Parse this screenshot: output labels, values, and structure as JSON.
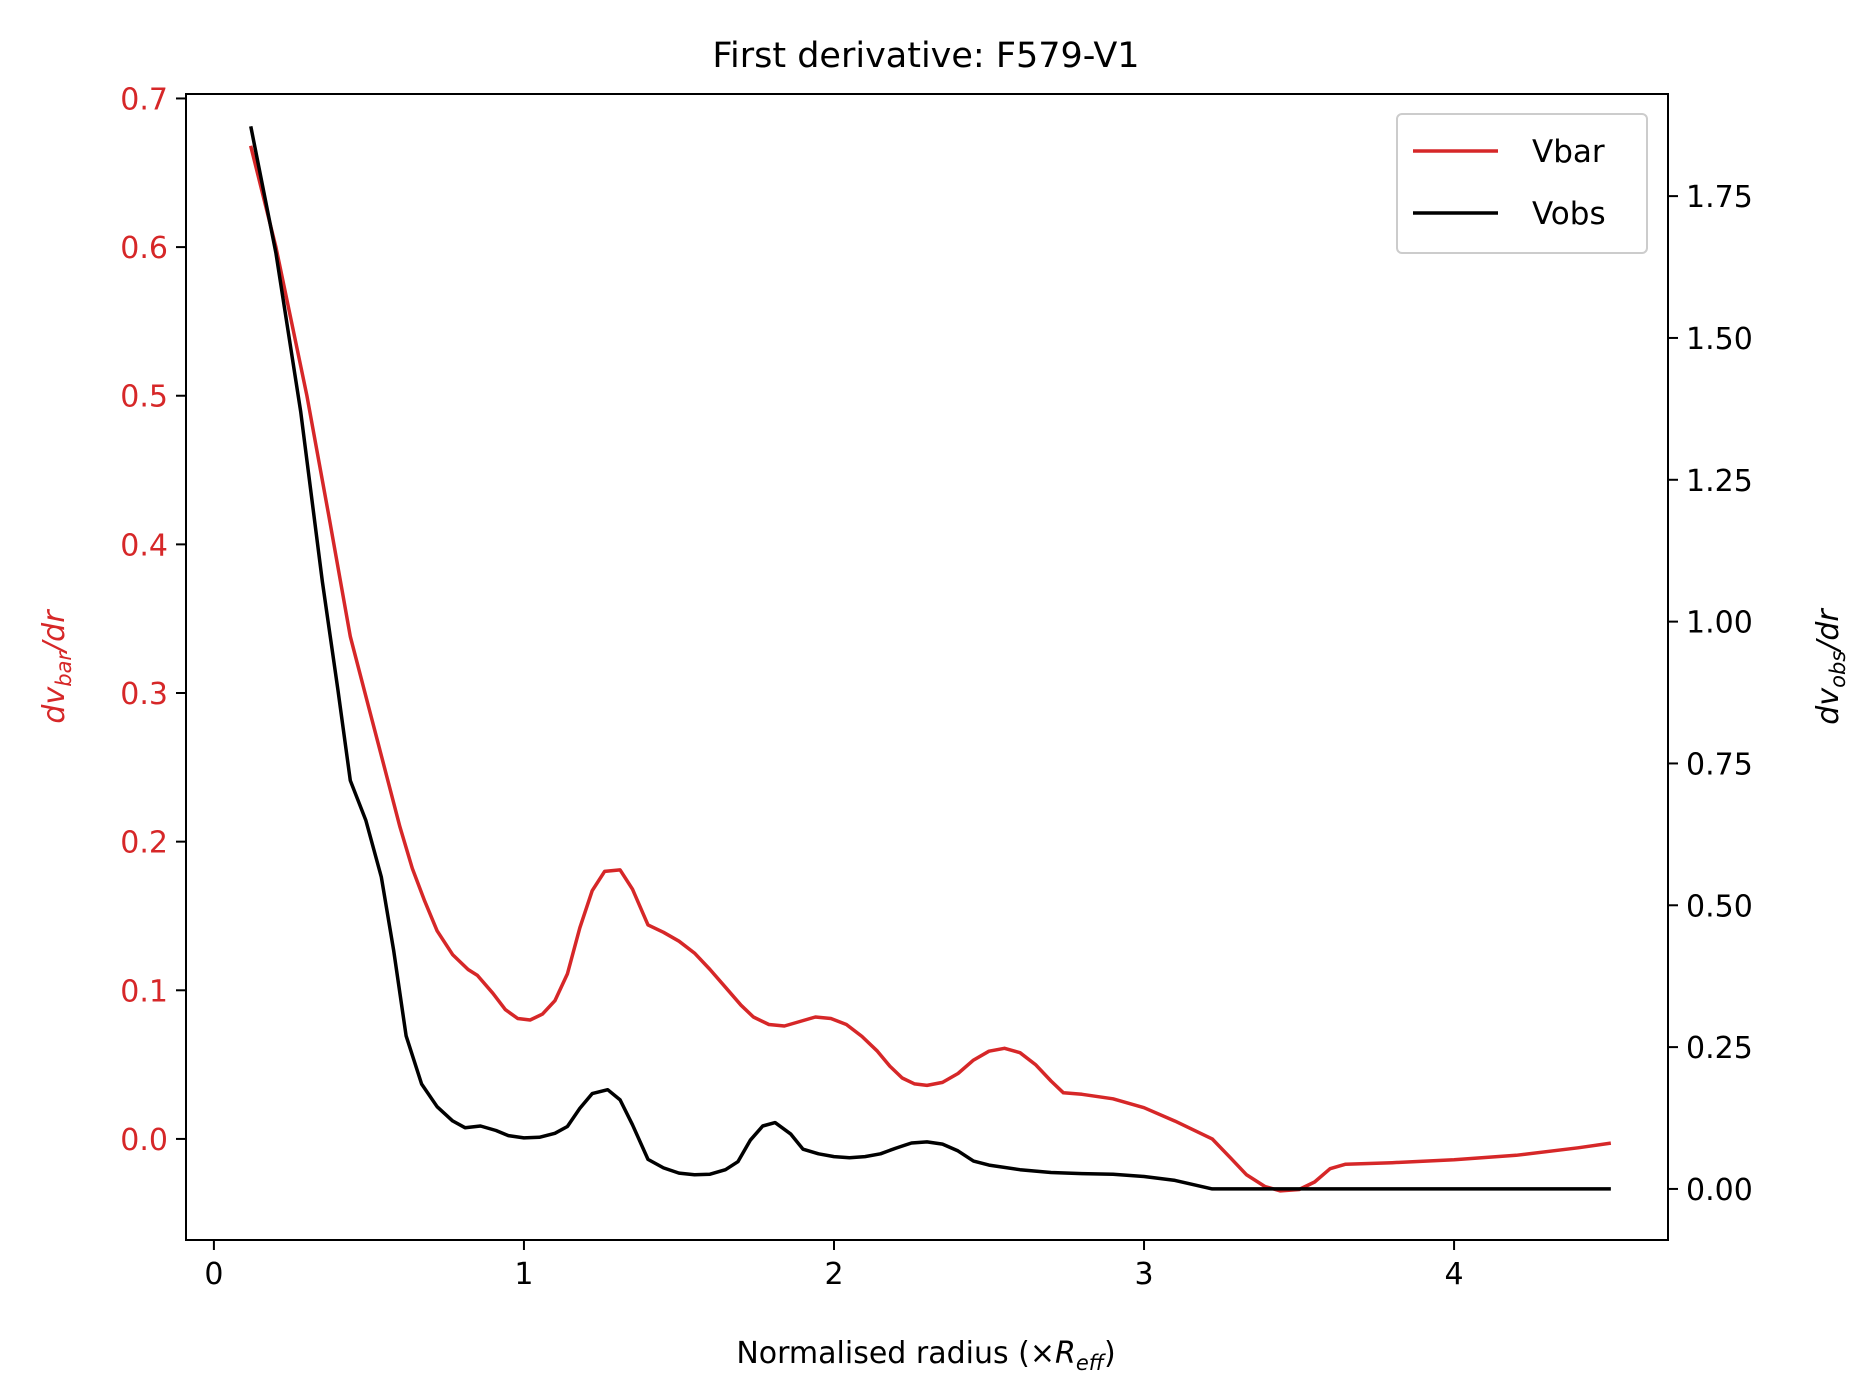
{
  "chart_data": {
    "type": "line",
    "title": "First derivative: F579-V1",
    "xlabel": "Normalised radius (×R_eff)",
    "xlabel_parts": {
      "main": "Normalised radius (×",
      "symbol": "R",
      "sub": "eff",
      "close": ")"
    },
    "ylabel_left_parts": {
      "pre": "dv",
      "sub": "bar",
      "post": "/dr"
    },
    "ylabel_right_parts": {
      "pre": "dv",
      "sub": "obs",
      "post": "/dr"
    },
    "xlim": [
      -0.09,
      4.69
    ],
    "ylim_left": [
      -0.068,
      0.703
    ],
    "ylim_right": [
      -0.09,
      1.93
    ],
    "x_ticks": [
      "0",
      "1",
      "2",
      "3",
      "4"
    ],
    "y_left_ticks": [
      "0.0",
      "0.1",
      "0.2",
      "0.3",
      "0.4",
      "0.5",
      "0.6",
      "0.7"
    ],
    "y_right_ticks": [
      "0.00",
      "0.25",
      "0.50",
      "0.75",
      "1.00",
      "1.25",
      "1.50",
      "1.75"
    ],
    "legend": {
      "position": "top-right",
      "entries": [
        "Vbar",
        "Vobs"
      ]
    },
    "grid": false,
    "colors": {
      "vbar": "#d62728",
      "vobs": "#000000",
      "left_axis": "#d62728",
      "right_axis": "#000000"
    },
    "series": [
      {
        "name": "Vbar",
        "axis": "left",
        "points": [
          [
            0.12,
            0.667
          ],
          [
            0.2,
            0.6
          ],
          [
            0.3,
            0.5
          ],
          [
            0.37,
            0.42
          ],
          [
            0.44,
            0.338
          ],
          [
            0.5,
            0.29
          ],
          [
            0.55,
            0.25
          ],
          [
            0.6,
            0.21
          ],
          [
            0.64,
            0.182
          ],
          [
            0.68,
            0.16
          ],
          [
            0.72,
            0.14
          ],
          [
            0.77,
            0.124
          ],
          [
            0.82,
            0.114
          ],
          [
            0.85,
            0.11
          ],
          [
            0.9,
            0.098
          ],
          [
            0.94,
            0.087
          ],
          [
            0.98,
            0.081
          ],
          [
            1.02,
            0.08
          ],
          [
            1.06,
            0.084
          ],
          [
            1.1,
            0.093
          ],
          [
            1.14,
            0.111
          ],
          [
            1.18,
            0.142
          ],
          [
            1.22,
            0.167
          ],
          [
            1.26,
            0.18
          ],
          [
            1.31,
            0.181
          ],
          [
            1.35,
            0.168
          ],
          [
            1.4,
            0.144
          ],
          [
            1.45,
            0.139
          ],
          [
            1.5,
            0.133
          ],
          [
            1.55,
            0.125
          ],
          [
            1.6,
            0.114
          ],
          [
            1.65,
            0.102
          ],
          [
            1.7,
            0.09
          ],
          [
            1.74,
            0.082
          ],
          [
            1.79,
            0.077
          ],
          [
            1.84,
            0.076
          ],
          [
            1.89,
            0.079
          ],
          [
            1.94,
            0.082
          ],
          [
            1.99,
            0.081
          ],
          [
            2.04,
            0.077
          ],
          [
            2.09,
            0.069
          ],
          [
            2.14,
            0.059
          ],
          [
            2.18,
            0.049
          ],
          [
            2.22,
            0.041
          ],
          [
            2.26,
            0.037
          ],
          [
            2.3,
            0.036
          ],
          [
            2.35,
            0.038
          ],
          [
            2.4,
            0.044
          ],
          [
            2.45,
            0.053
          ],
          [
            2.5,
            0.059
          ],
          [
            2.55,
            0.061
          ],
          [
            2.6,
            0.058
          ],
          [
            2.65,
            0.05
          ],
          [
            2.7,
            0.039
          ],
          [
            2.74,
            0.031
          ],
          [
            2.8,
            0.03
          ],
          [
            2.9,
            0.027
          ],
          [
            3.0,
            0.021
          ],
          [
            3.1,
            0.012
          ],
          [
            3.22,
            0.0
          ],
          [
            3.28,
            -0.013
          ],
          [
            3.33,
            -0.024
          ],
          [
            3.39,
            -0.032
          ],
          [
            3.44,
            -0.035
          ],
          [
            3.5,
            -0.034
          ],
          [
            3.55,
            -0.029
          ],
          [
            3.6,
            -0.02
          ],
          [
            3.65,
            -0.017
          ],
          [
            3.8,
            -0.016
          ],
          [
            4.0,
            -0.014
          ],
          [
            4.2,
            -0.011
          ],
          [
            4.4,
            -0.006
          ],
          [
            4.5,
            -0.003
          ]
        ]
      },
      {
        "name": "Vobs",
        "axis": "right",
        "points": [
          [
            0.12,
            1.87
          ],
          [
            0.2,
            1.65
          ],
          [
            0.28,
            1.37
          ],
          [
            0.35,
            1.07
          ],
          [
            0.4,
            0.88
          ],
          [
            0.44,
            0.72
          ],
          [
            0.49,
            0.65
          ],
          [
            0.54,
            0.55
          ],
          [
            0.58,
            0.42
          ],
          [
            0.62,
            0.27
          ],
          [
            0.67,
            0.185
          ],
          [
            0.72,
            0.145
          ],
          [
            0.77,
            0.12
          ],
          [
            0.81,
            0.108
          ],
          [
            0.86,
            0.111
          ],
          [
            0.91,
            0.103
          ],
          [
            0.95,
            0.094
          ],
          [
            1.0,
            0.09
          ],
          [
            1.05,
            0.091
          ],
          [
            1.1,
            0.098
          ],
          [
            1.14,
            0.11
          ],
          [
            1.18,
            0.142
          ],
          [
            1.22,
            0.168
          ],
          [
            1.27,
            0.175
          ],
          [
            1.31,
            0.157
          ],
          [
            1.35,
            0.113
          ],
          [
            1.4,
            0.052
          ],
          [
            1.45,
            0.037
          ],
          [
            1.5,
            0.028
          ],
          [
            1.55,
            0.025
          ],
          [
            1.6,
            0.026
          ],
          [
            1.65,
            0.034
          ],
          [
            1.69,
            0.048
          ],
          [
            1.73,
            0.086
          ],
          [
            1.77,
            0.111
          ],
          [
            1.81,
            0.117
          ],
          [
            1.86,
            0.097
          ],
          [
            1.9,
            0.07
          ],
          [
            1.95,
            0.062
          ],
          [
            2.0,
            0.057
          ],
          [
            2.05,
            0.055
          ],
          [
            2.1,
            0.057
          ],
          [
            2.15,
            0.062
          ],
          [
            2.2,
            0.072
          ],
          [
            2.25,
            0.081
          ],
          [
            2.3,
            0.083
          ],
          [
            2.35,
            0.079
          ],
          [
            2.4,
            0.067
          ],
          [
            2.45,
            0.049
          ],
          [
            2.5,
            0.042
          ],
          [
            2.6,
            0.034
          ],
          [
            2.7,
            0.029
          ],
          [
            2.8,
            0.027
          ],
          [
            2.9,
            0.026
          ],
          [
            3.0,
            0.022
          ],
          [
            3.1,
            0.015
          ],
          [
            3.22,
            0.0
          ],
          [
            3.4,
            0.0
          ],
          [
            3.6,
            0.0
          ],
          [
            3.8,
            0.0
          ],
          [
            4.0,
            0.0
          ],
          [
            4.2,
            0.0
          ],
          [
            4.4,
            0.0
          ],
          [
            4.5,
            0.0
          ]
        ]
      }
    ]
  }
}
